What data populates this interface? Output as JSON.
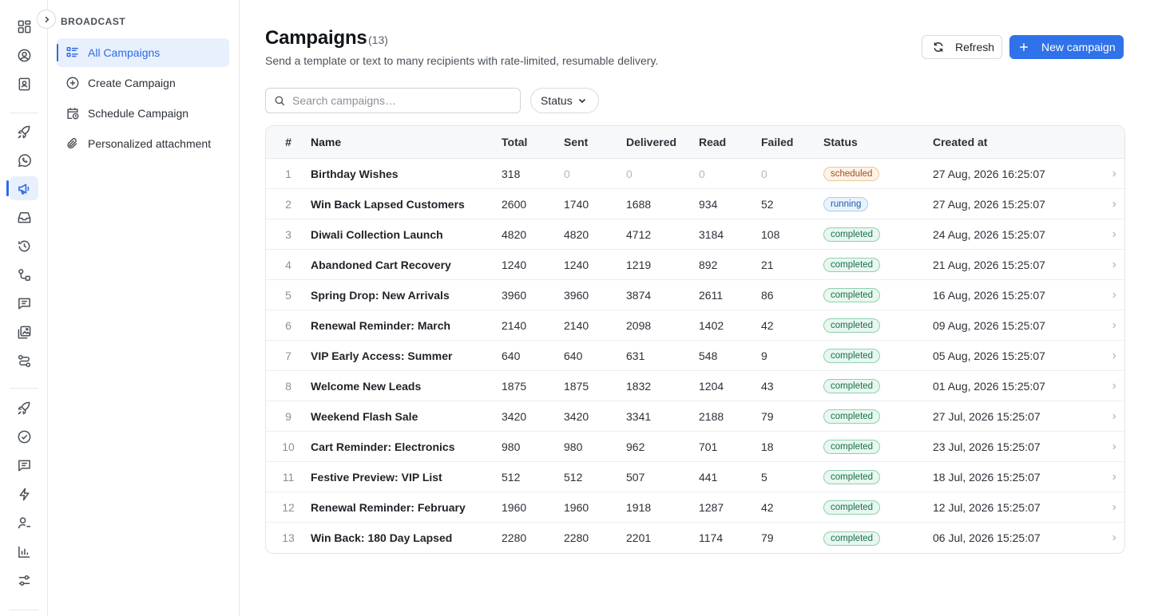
{
  "rail": {
    "icons": [
      "dashboard-icon",
      "user-circle-icon",
      "contact-book-icon",
      "rocket-icon",
      "whatsapp-icon",
      "megaphone-icon",
      "inbox-icon",
      "history-icon",
      "flow-icon",
      "message-icon",
      "gallery-icon",
      "route-icon",
      "rocket-icon",
      "check-circle-icon",
      "chat-icon",
      "bolt-icon",
      "user-plus-icon",
      "bar-chart-icon",
      "settings-sliders-icon"
    ],
    "active": "megaphone-icon"
  },
  "subnav": {
    "section_title": "BROADCAST",
    "items": [
      {
        "label": "All Campaigns",
        "icon": "list-icon",
        "active": true
      },
      {
        "label": "Create Campaign",
        "icon": "plus-circle-icon",
        "active": false
      },
      {
        "label": "Schedule Campaign",
        "icon": "calendar-clock-icon",
        "active": false
      },
      {
        "label": "Personalized attachment",
        "icon": "paperclip-icon",
        "active": false
      }
    ]
  },
  "header": {
    "title": "Campaigns",
    "count": "(13)",
    "subtitle": "Send a template or text to many recipients with rate-limited, resumable delivery.",
    "refresh_label": "Refresh",
    "new_label": "New campaign"
  },
  "filters": {
    "search_placeholder": "Search campaigns…",
    "status_label": "Status"
  },
  "table": {
    "columns": [
      "#",
      "Name",
      "Total",
      "Sent",
      "Delivered",
      "Read",
      "Failed",
      "Status",
      "Created at"
    ],
    "rows": [
      {
        "num": "1",
        "name": "Birthday Wishes",
        "total": "318",
        "sent": "0",
        "delivered": "0",
        "read": "0",
        "failed": "0",
        "status": "scheduled",
        "created": "27 Aug, 2026 16:25:07"
      },
      {
        "num": "2",
        "name": "Win Back Lapsed Customers",
        "total": "2600",
        "sent": "1740",
        "delivered": "1688",
        "read": "934",
        "failed": "52",
        "status": "running",
        "created": "27 Aug, 2026 15:25:07"
      },
      {
        "num": "3",
        "name": "Diwali Collection Launch",
        "total": "4820",
        "sent": "4820",
        "delivered": "4712",
        "read": "3184",
        "failed": "108",
        "status": "completed",
        "created": "24 Aug, 2026 15:25:07"
      },
      {
        "num": "4",
        "name": "Abandoned Cart Recovery",
        "total": "1240",
        "sent": "1240",
        "delivered": "1219",
        "read": "892",
        "failed": "21",
        "status": "completed",
        "created": "21 Aug, 2026 15:25:07"
      },
      {
        "num": "5",
        "name": "Spring Drop: New Arrivals",
        "total": "3960",
        "sent": "3960",
        "delivered": "3874",
        "read": "2611",
        "failed": "86",
        "status": "completed",
        "created": "16 Aug, 2026 15:25:07"
      },
      {
        "num": "6",
        "name": "Renewal Reminder: March",
        "total": "2140",
        "sent": "2140",
        "delivered": "2098",
        "read": "1402",
        "failed": "42",
        "status": "completed",
        "created": "09 Aug, 2026 15:25:07"
      },
      {
        "num": "7",
        "name": "VIP Early Access: Summer",
        "total": "640",
        "sent": "640",
        "delivered": "631",
        "read": "548",
        "failed": "9",
        "status": "completed",
        "created": "05 Aug, 2026 15:25:07"
      },
      {
        "num": "8",
        "name": "Welcome New Leads",
        "total": "1875",
        "sent": "1875",
        "delivered": "1832",
        "read": "1204",
        "failed": "43",
        "status": "completed",
        "created": "01 Aug, 2026 15:25:07"
      },
      {
        "num": "9",
        "name": "Weekend Flash Sale",
        "total": "3420",
        "sent": "3420",
        "delivered": "3341",
        "read": "2188",
        "failed": "79",
        "status": "completed",
        "created": "27 Jul, 2026 15:25:07"
      },
      {
        "num": "10",
        "name": "Cart Reminder: Electronics",
        "total": "980",
        "sent": "980",
        "delivered": "962",
        "read": "701",
        "failed": "18",
        "status": "completed",
        "created": "23 Jul, 2026 15:25:07"
      },
      {
        "num": "11",
        "name": "Festive Preview: VIP List",
        "total": "512",
        "sent": "512",
        "delivered": "507",
        "read": "441",
        "failed": "5",
        "status": "completed",
        "created": "18 Jul, 2026 15:25:07"
      },
      {
        "num": "12",
        "name": "Renewal Reminder: February",
        "total": "1960",
        "sent": "1960",
        "delivered": "1918",
        "read": "1287",
        "failed": "42",
        "status": "completed",
        "created": "12 Jul, 2026 15:25:07"
      },
      {
        "num": "13",
        "name": "Win Back: 180 Day Lapsed",
        "total": "2280",
        "sent": "2280",
        "delivered": "2201",
        "read": "1174",
        "failed": "79",
        "status": "completed",
        "created": "06 Jul, 2026 15:25:07"
      }
    ]
  },
  "colors": {
    "accent": "#2f72ea",
    "scheduled": "#a0501c",
    "running": "#1f5aa8",
    "completed": "#17714a"
  }
}
